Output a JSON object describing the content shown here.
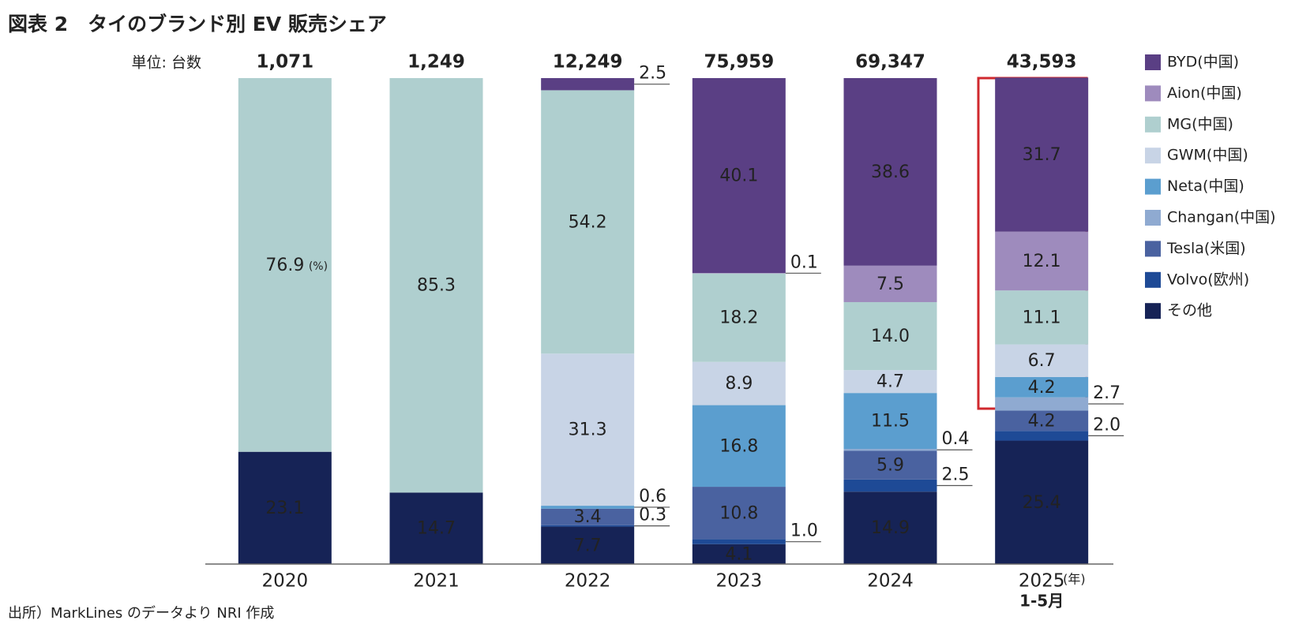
{
  "chart_data": {
    "type": "stacked_bar",
    "title": "図表 2　タイのブランド別 EV 販売シェア",
    "unit_label": "単位: 台数",
    "value_unit": "(%)",
    "x_unit": "(年)",
    "x_note": "1-5月",
    "source": "出所）MarkLines のデータより NRI 作成",
    "categories": [
      "2020",
      "2021",
      "2022",
      "2023",
      "2024",
      "2025"
    ],
    "totals": {
      "values": [
        1071,
        1249,
        12249,
        75959,
        69347,
        43593
      ],
      "value_labels": [
        "1,071",
        "1,249",
        "12,249",
        "75,959",
        "69,347",
        "43,593"
      ]
    },
    "ylim": [
      0,
      100
    ],
    "series": [
      {
        "name": "BYD(中国)",
        "color": "#5a3f84",
        "values": [
          null,
          null,
          2.5,
          40.1,
          38.6,
          31.7
        ],
        "value_labels": [
          null,
          null,
          "2.5",
          "40.1",
          "38.6",
          "31.7"
        ]
      },
      {
        "name": "Aion(中国)",
        "color": "#9e8bbd",
        "values": [
          null,
          null,
          null,
          0.1,
          7.5,
          12.1
        ],
        "value_labels": [
          null,
          null,
          null,
          "0.1",
          "7.5",
          "12.1"
        ]
      },
      {
        "name": "MG(中国)",
        "color": "#afcfcf",
        "values": [
          76.9,
          85.3,
          54.2,
          18.2,
          14.0,
          11.1
        ],
        "value_labels": [
          "76.9",
          "85.3",
          "54.2",
          "18.2",
          "14.0",
          "11.1"
        ]
      },
      {
        "name": "GWM(中国)",
        "color": "#c8d4e6",
        "values": [
          null,
          null,
          31.3,
          8.9,
          4.7,
          6.7
        ],
        "value_labels": [
          null,
          null,
          "31.3",
          "8.9",
          "4.7",
          "6.7"
        ]
      },
      {
        "name": "Neta(中国)",
        "color": "#5b9ecf",
        "values": [
          null,
          null,
          0.6,
          16.8,
          11.5,
          4.2
        ],
        "value_labels": [
          null,
          null,
          "0.6",
          "16.8",
          "11.5",
          "4.2"
        ]
      },
      {
        "name": "Changan(中国)",
        "color": "#8faad1",
        "values": [
          null,
          null,
          null,
          null,
          0.4,
          2.7
        ],
        "value_labels": [
          null,
          null,
          null,
          null,
          "0.4",
          "2.7"
        ]
      },
      {
        "name": "Tesla(米国)",
        "color": "#4a62a0",
        "values": [
          null,
          null,
          3.4,
          10.8,
          5.9,
          4.2
        ],
        "value_labels": [
          null,
          null,
          "3.4",
          "10.8",
          "5.9",
          "4.2"
        ]
      },
      {
        "name": "Volvo(欧州)",
        "color": "#1e4a96",
        "values": [
          null,
          null,
          0.3,
          1.0,
          2.5,
          2.0
        ],
        "value_labels": [
          null,
          null,
          "0.3",
          "1.0",
          "2.5",
          "2.0"
        ]
      },
      {
        "name": "その他",
        "color": "#162356",
        "values": [
          23.1,
          14.7,
          7.7,
          4.1,
          14.9,
          25.4
        ],
        "value_labels": [
          "23.1",
          "14.7",
          "7.7",
          "4.1",
          "14.9",
          "25.4"
        ]
      }
    ]
  }
}
